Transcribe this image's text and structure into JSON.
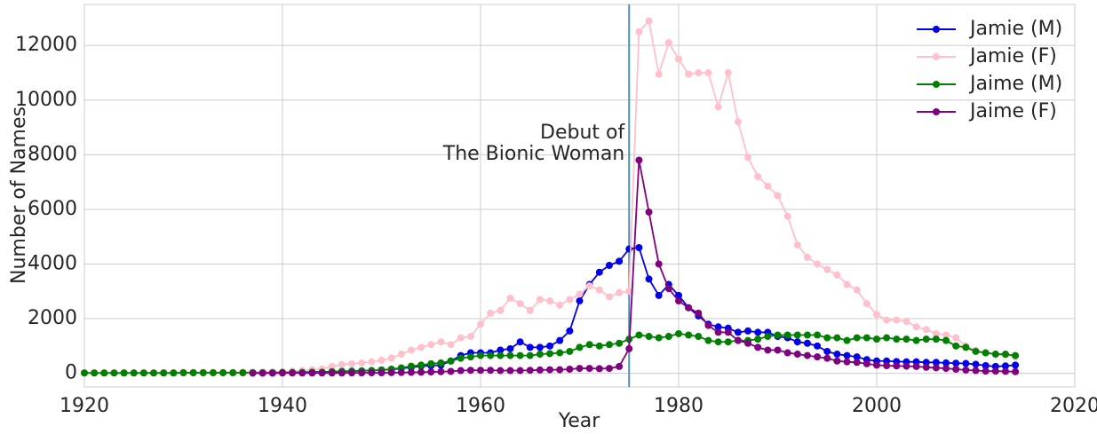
{
  "chart_data": {
    "type": "line",
    "xlabel": "Year",
    "ylabel": "Number of Names",
    "x": [
      1920,
      1921,
      1922,
      1923,
      1924,
      1925,
      1926,
      1927,
      1928,
      1929,
      1930,
      1931,
      1932,
      1933,
      1934,
      1935,
      1936,
      1937,
      1938,
      1939,
      1940,
      1941,
      1942,
      1943,
      1944,
      1945,
      1946,
      1947,
      1948,
      1949,
      1950,
      1951,
      1952,
      1953,
      1954,
      1955,
      1956,
      1957,
      1958,
      1959,
      1960,
      1961,
      1962,
      1963,
      1964,
      1965,
      1966,
      1967,
      1968,
      1969,
      1970,
      1971,
      1972,
      1973,
      1974,
      1975,
      1976,
      1977,
      1978,
      1979,
      1980,
      1981,
      1982,
      1983,
      1984,
      1985,
      1986,
      1987,
      1988,
      1989,
      1990,
      1991,
      1992,
      1993,
      1994,
      1995,
      1996,
      1997,
      1998,
      1999,
      2000,
      2001,
      2002,
      2003,
      2004,
      2005,
      2006,
      2007,
      2008,
      2009,
      2010,
      2011,
      2012,
      2013,
      2014
    ],
    "series": [
      {
        "name": "Jamie (M)",
        "color": "#0000ee",
        "values": [
          20,
          20,
          20,
          20,
          20,
          20,
          20,
          20,
          20,
          20,
          30,
          30,
          30,
          30,
          30,
          30,
          30,
          40,
          40,
          40,
          40,
          40,
          40,
          50,
          50,
          60,
          70,
          80,
          90,
          100,
          120,
          140,
          180,
          220,
          260,
          280,
          300,
          450,
          650,
          750,
          750,
          750,
          850,
          900,
          1150,
          950,
          950,
          1000,
          1200,
          1550,
          2650,
          3250,
          3700,
          3950,
          4100,
          4550,
          4600,
          3450,
          2850,
          3250,
          2850,
          2400,
          2100,
          1800,
          1700,
          1650,
          1500,
          1550,
          1500,
          1500,
          1350,
          1300,
          1150,
          1100,
          1000,
          800,
          700,
          650,
          600,
          500,
          450,
          450,
          430,
          420,
          420,
          400,
          400,
          380,
          370,
          360,
          330,
          280,
          250,
          270,
          300
        ]
      },
      {
        "name": "Jamie (F)",
        "color": "#ffc0cb",
        "values": [
          30,
          30,
          30,
          30,
          30,
          30,
          30,
          30,
          30,
          30,
          40,
          40,
          40,
          40,
          40,
          40,
          50,
          50,
          50,
          60,
          60,
          80,
          100,
          130,
          160,
          250,
          320,
          350,
          380,
          420,
          480,
          560,
          700,
          850,
          950,
          1050,
          1150,
          1050,
          1300,
          1350,
          1800,
          2200,
          2300,
          2750,
          2550,
          2300,
          2700,
          2650,
          2500,
          2700,
          2900,
          3200,
          3050,
          2800,
          2950,
          3000,
          12500,
          12900,
          10950,
          12100,
          11500,
          10950,
          11000,
          11000,
          9750,
          11000,
          9200,
          7900,
          7200,
          6850,
          6500,
          5750,
          4700,
          4250,
          4000,
          3800,
          3600,
          3250,
          3050,
          2550,
          2150,
          1950,
          1950,
          1900,
          1700,
          1600,
          1450,
          1400,
          1300,
          1000,
          850,
          750,
          700,
          650,
          600
        ]
      },
      {
        "name": "Jaime (M)",
        "color": "#008000",
        "values": [
          10,
          10,
          10,
          10,
          10,
          10,
          10,
          10,
          10,
          10,
          20,
          20,
          20,
          20,
          20,
          20,
          20,
          20,
          20,
          20,
          30,
          30,
          30,
          40,
          40,
          60,
          70,
          80,
          90,
          100,
          120,
          150,
          200,
          260,
          300,
          350,
          380,
          450,
          550,
          600,
          650,
          650,
          650,
          650,
          650,
          650,
          700,
          720,
          750,
          800,
          950,
          1050,
          1000,
          1050,
          1100,
          1250,
          1400,
          1350,
          1300,
          1350,
          1450,
          1400,
          1350,
          1200,
          1150,
          1150,
          1200,
          1200,
          1250,
          1350,
          1400,
          1400,
          1400,
          1400,
          1400,
          1300,
          1300,
          1200,
          1300,
          1300,
          1250,
          1300,
          1250,
          1250,
          1200,
          1250,
          1250,
          1200,
          1000,
          950,
          800,
          750,
          700,
          700,
          650
        ]
      },
      {
        "name": "Jaime (F)",
        "color": "#800080",
        "values": [
          null,
          null,
          null,
          null,
          null,
          null,
          null,
          null,
          null,
          null,
          null,
          null,
          null,
          null,
          null,
          null,
          null,
          5,
          5,
          5,
          10,
          10,
          10,
          10,
          10,
          10,
          10,
          15,
          15,
          20,
          20,
          25,
          30,
          35,
          40,
          50,
          60,
          70,
          100,
          110,
          110,
          110,
          100,
          100,
          100,
          110,
          120,
          130,
          130,
          150,
          180,
          180,
          170,
          180,
          250,
          900,
          7800,
          5900,
          4000,
          3100,
          2650,
          2400,
          2200,
          1750,
          1500,
          1500,
          1200,
          1100,
          950,
          850,
          850,
          750,
          700,
          650,
          600,
          550,
          450,
          420,
          400,
          350,
          300,
          280,
          270,
          260,
          250,
          220,
          200,
          180,
          150,
          120,
          100,
          80,
          80,
          70,
          60
        ]
      }
    ],
    "xlim": [
      1920,
      2020
    ],
    "xticks": [
      1920,
      1940,
      1960,
      1980,
      2000,
      2020
    ],
    "ylim": [
      -500,
      13500
    ],
    "yticks": [
      0,
      2000,
      4000,
      6000,
      8000,
      10000,
      12000
    ],
    "grid": true,
    "legend": "upper right",
    "vline": {
      "x": 1975,
      "color": "#4a90b0"
    },
    "annotation": [
      "Debut of",
      "The Bionic Woman"
    ]
  }
}
